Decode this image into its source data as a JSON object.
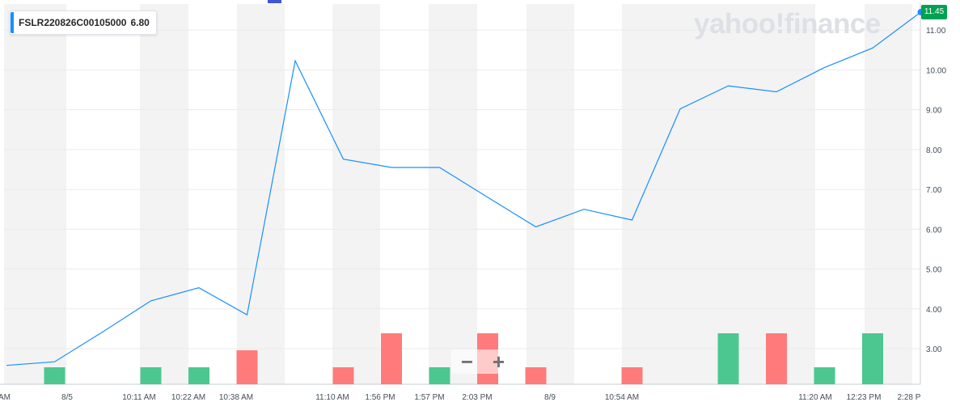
{
  "legend": {
    "symbol": "FSLR220826C00105000",
    "value": "6.80"
  },
  "watermark": "yahoo!finance",
  "last_price_badge": "11.45",
  "zoom": {
    "minus": "−",
    "plus": "+"
  },
  "colors": {
    "line": "#188fff",
    "up_volume": "#4cc790",
    "down_volume": "#ff7b7b",
    "badge": "#00a152"
  },
  "chart_data": {
    "type": "line",
    "y_axis": {
      "ticks": [
        "3.00",
        "4.00",
        "5.00",
        "6.00",
        "7.00",
        "8.00",
        "9.00",
        "10.00",
        "11.00"
      ],
      "ylim": [
        2.35,
        11.45
      ],
      "position": "right"
    },
    "x_labels": [
      "AM",
      "8/5",
      "10:11 AM",
      "10:22 AM",
      "10:38 AM",
      "11:10 AM",
      "1:56 PM",
      "1:57 PM",
      "2:03 PM",
      "8/9",
      "10:54 AM",
      "11:20 AM",
      "12:23 PM",
      "2:28 P"
    ],
    "price_series": [
      {
        "x": 0,
        "y": 2.58
      },
      {
        "x": 1,
        "y": 2.67
      },
      {
        "x": 2,
        "y": 3.42
      },
      {
        "x": 3,
        "y": 4.2
      },
      {
        "x": 4,
        "y": 4.53
      },
      {
        "x": 5,
        "y": 3.85
      },
      {
        "x": 6,
        "y": 10.23
      },
      {
        "x": 7,
        "y": 7.76
      },
      {
        "x": 8,
        "y": 7.55
      },
      {
        "x": 9,
        "y": 7.55
      },
      {
        "x": 10,
        "y": 6.8
      },
      {
        "x": 11,
        "y": 6.06
      },
      {
        "x": 12,
        "y": 6.5
      },
      {
        "x": 13,
        "y": 6.23
      },
      {
        "x": 14,
        "y": 9.02
      },
      {
        "x": 15,
        "y": 9.6
      },
      {
        "x": 16,
        "y": 9.45
      },
      {
        "x": 17,
        "y": 10.06
      },
      {
        "x": 18,
        "y": 10.55
      },
      {
        "x": 19,
        "y": 11.45
      }
    ],
    "volume_bars": [
      {
        "x": 1,
        "volume": 1,
        "direction": "up"
      },
      {
        "x": 3,
        "volume": 1,
        "direction": "up"
      },
      {
        "x": 4,
        "volume": 1,
        "direction": "up"
      },
      {
        "x": 5,
        "volume": 2,
        "direction": "down"
      },
      {
        "x": 7,
        "volume": 1,
        "direction": "down"
      },
      {
        "x": 8,
        "volume": 3,
        "direction": "down"
      },
      {
        "x": 9,
        "volume": 1,
        "direction": "up"
      },
      {
        "x": 10,
        "volume": 3,
        "direction": "down"
      },
      {
        "x": 11,
        "volume": 1,
        "direction": "down"
      },
      {
        "x": 13,
        "volume": 1,
        "direction": "down"
      },
      {
        "x": 15,
        "volume": 3,
        "direction": "up"
      },
      {
        "x": 16,
        "volume": 3,
        "direction": "down"
      },
      {
        "x": 17,
        "volume": 1,
        "direction": "up"
      },
      {
        "x": 18,
        "volume": 3,
        "direction": "up"
      }
    ],
    "grid": true,
    "legend_position": "top-left"
  }
}
